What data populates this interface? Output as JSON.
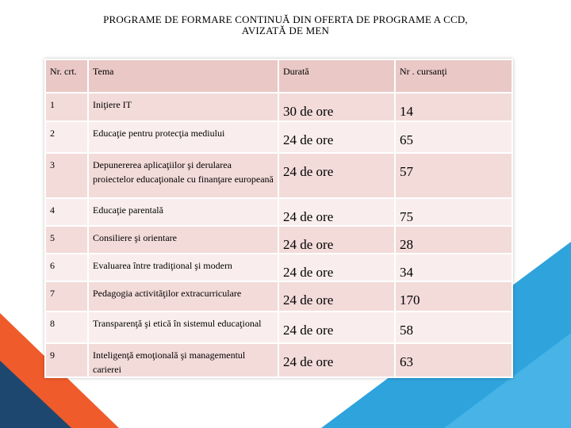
{
  "title_lines": [
    "PROGRAME DE FORMARE CONTINUĂ DIN OFERTA DE PROGRAME A CCD,",
    "AVIZATĂ DE MEN"
  ],
  "table": {
    "header": {
      "nr": "Nr. crt.",
      "tema": "Tema",
      "durata": "Durată",
      "cursanti": "Nr . cursanţi"
    },
    "rows": [
      {
        "nr": "1",
        "tema": "Iniţiere IT",
        "durata": "30 de ore",
        "cursanti": "14"
      },
      {
        "nr": "2",
        "tema": "Educaţie pentru protecţia mediului",
        "durata": "24 de ore",
        "cursanti": "65"
      },
      {
        "nr": "3",
        "tema": "Depunererea aplicaţiilor şi derularea proiectelor educaţionale cu finanţare europeană",
        "durata": "24 de ore",
        "cursanti": "57"
      },
      {
        "nr": "4",
        "tema": "Educaţie parentală",
        "durata": "24 de ore",
        "cursanti": "75"
      },
      {
        "nr": "5",
        "tema": "Consiliere şi orientare",
        "durata": "24 de ore",
        "cursanti": "28"
      },
      {
        "nr": "6",
        "tema": "Evaluarea între tradiţional şi modern",
        "durata": "24 de ore",
        "cursanti": "34"
      },
      {
        "nr": "7",
        "tema": "Pedagogia activităţilor extracurriculare",
        "durata": "24 de ore",
        "cursanti": "170"
      },
      {
        "nr": "8",
        "tema": "Transparenţă şi etică în sistemul educaţional",
        "durata": "24 de ore",
        "cursanti": "58"
      },
      {
        "nr": "9",
        "tema": "Inteligenţă emoţională şi managementul carierei",
        "durata": "24 de ore",
        "cursanti": "63"
      }
    ]
  },
  "colors": {
    "header_bg": "#e9c8c6",
    "row_odd_bg": "#f2dbd9",
    "row_even_bg": "#f9eeed",
    "accent_orange": "#ef5b2b",
    "accent_blue": "#2ea3dc",
    "accent_navy": "#1e4770"
  }
}
